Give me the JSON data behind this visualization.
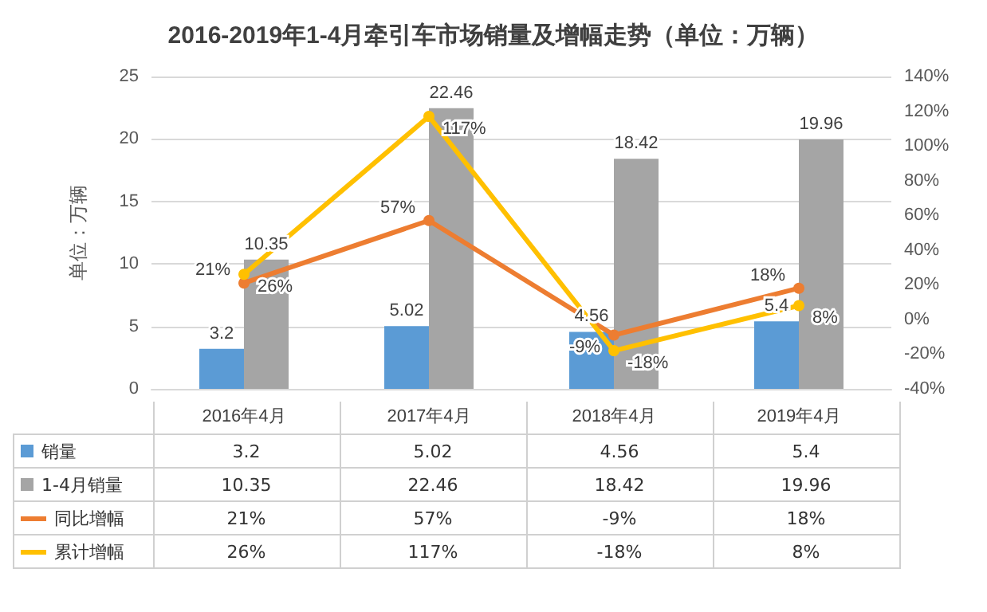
{
  "chart_data": {
    "type": "bar",
    "title": "2016-2019年1-4月牵引车市场销量及增幅走势（单位：万辆）",
    "ylabel": "单位：万辆",
    "categories": [
      "2016年4月",
      "2017年4月",
      "2018年4月",
      "2019年4月"
    ],
    "series": [
      {
        "name": "销量",
        "color": "#5b9bd5",
        "values": [
          3.2,
          5.02,
          4.56,
          5.4
        ],
        "value_labels": [
          "3.2",
          "5.02",
          "4.56",
          "5.4"
        ]
      },
      {
        "name": "1-4月销量",
        "color": "#a5a5a5",
        "values": [
          10.35,
          22.46,
          18.42,
          19.96
        ],
        "value_labels": [
          "10.35",
          "22.46",
          "18.42",
          "19.96"
        ]
      },
      {
        "name": "同比增幅",
        "type": "line",
        "axis": "y2",
        "color": "#ed7d31",
        "values": [
          21,
          57,
          -9,
          18
        ],
        "value_labels": [
          "21%",
          "57%",
          "-9%",
          "18%"
        ]
      },
      {
        "name": "累计增幅",
        "type": "line",
        "axis": "y2",
        "color": "#ffc000",
        "values": [
          26,
          117,
          -18,
          8
        ],
        "value_labels": [
          "26%",
          "117%",
          "-18%",
          "8%"
        ]
      }
    ],
    "ylim": [
      0,
      25
    ],
    "yticks": [
      0,
      5,
      10,
      15,
      20,
      25
    ],
    "y2lim": [
      -40,
      140
    ],
    "y2ticks": [
      {
        "value": -40,
        "label": "-40%"
      },
      {
        "value": -20,
        "label": "-20%"
      },
      {
        "value": 0,
        "label": "0%"
      },
      {
        "value": 20,
        "label": "20%"
      },
      {
        "value": 40,
        "label": "40%"
      },
      {
        "value": 60,
        "label": "60%"
      },
      {
        "value": 80,
        "label": "80%"
      },
      {
        "value": 100,
        "label": "100%"
      },
      {
        "value": 120,
        "label": "120%"
      },
      {
        "value": 140,
        "label": "140%"
      }
    ],
    "grid": "y",
    "legend": "bottom",
    "marker": "circle",
    "line_style": "solid",
    "data_labels": true
  }
}
